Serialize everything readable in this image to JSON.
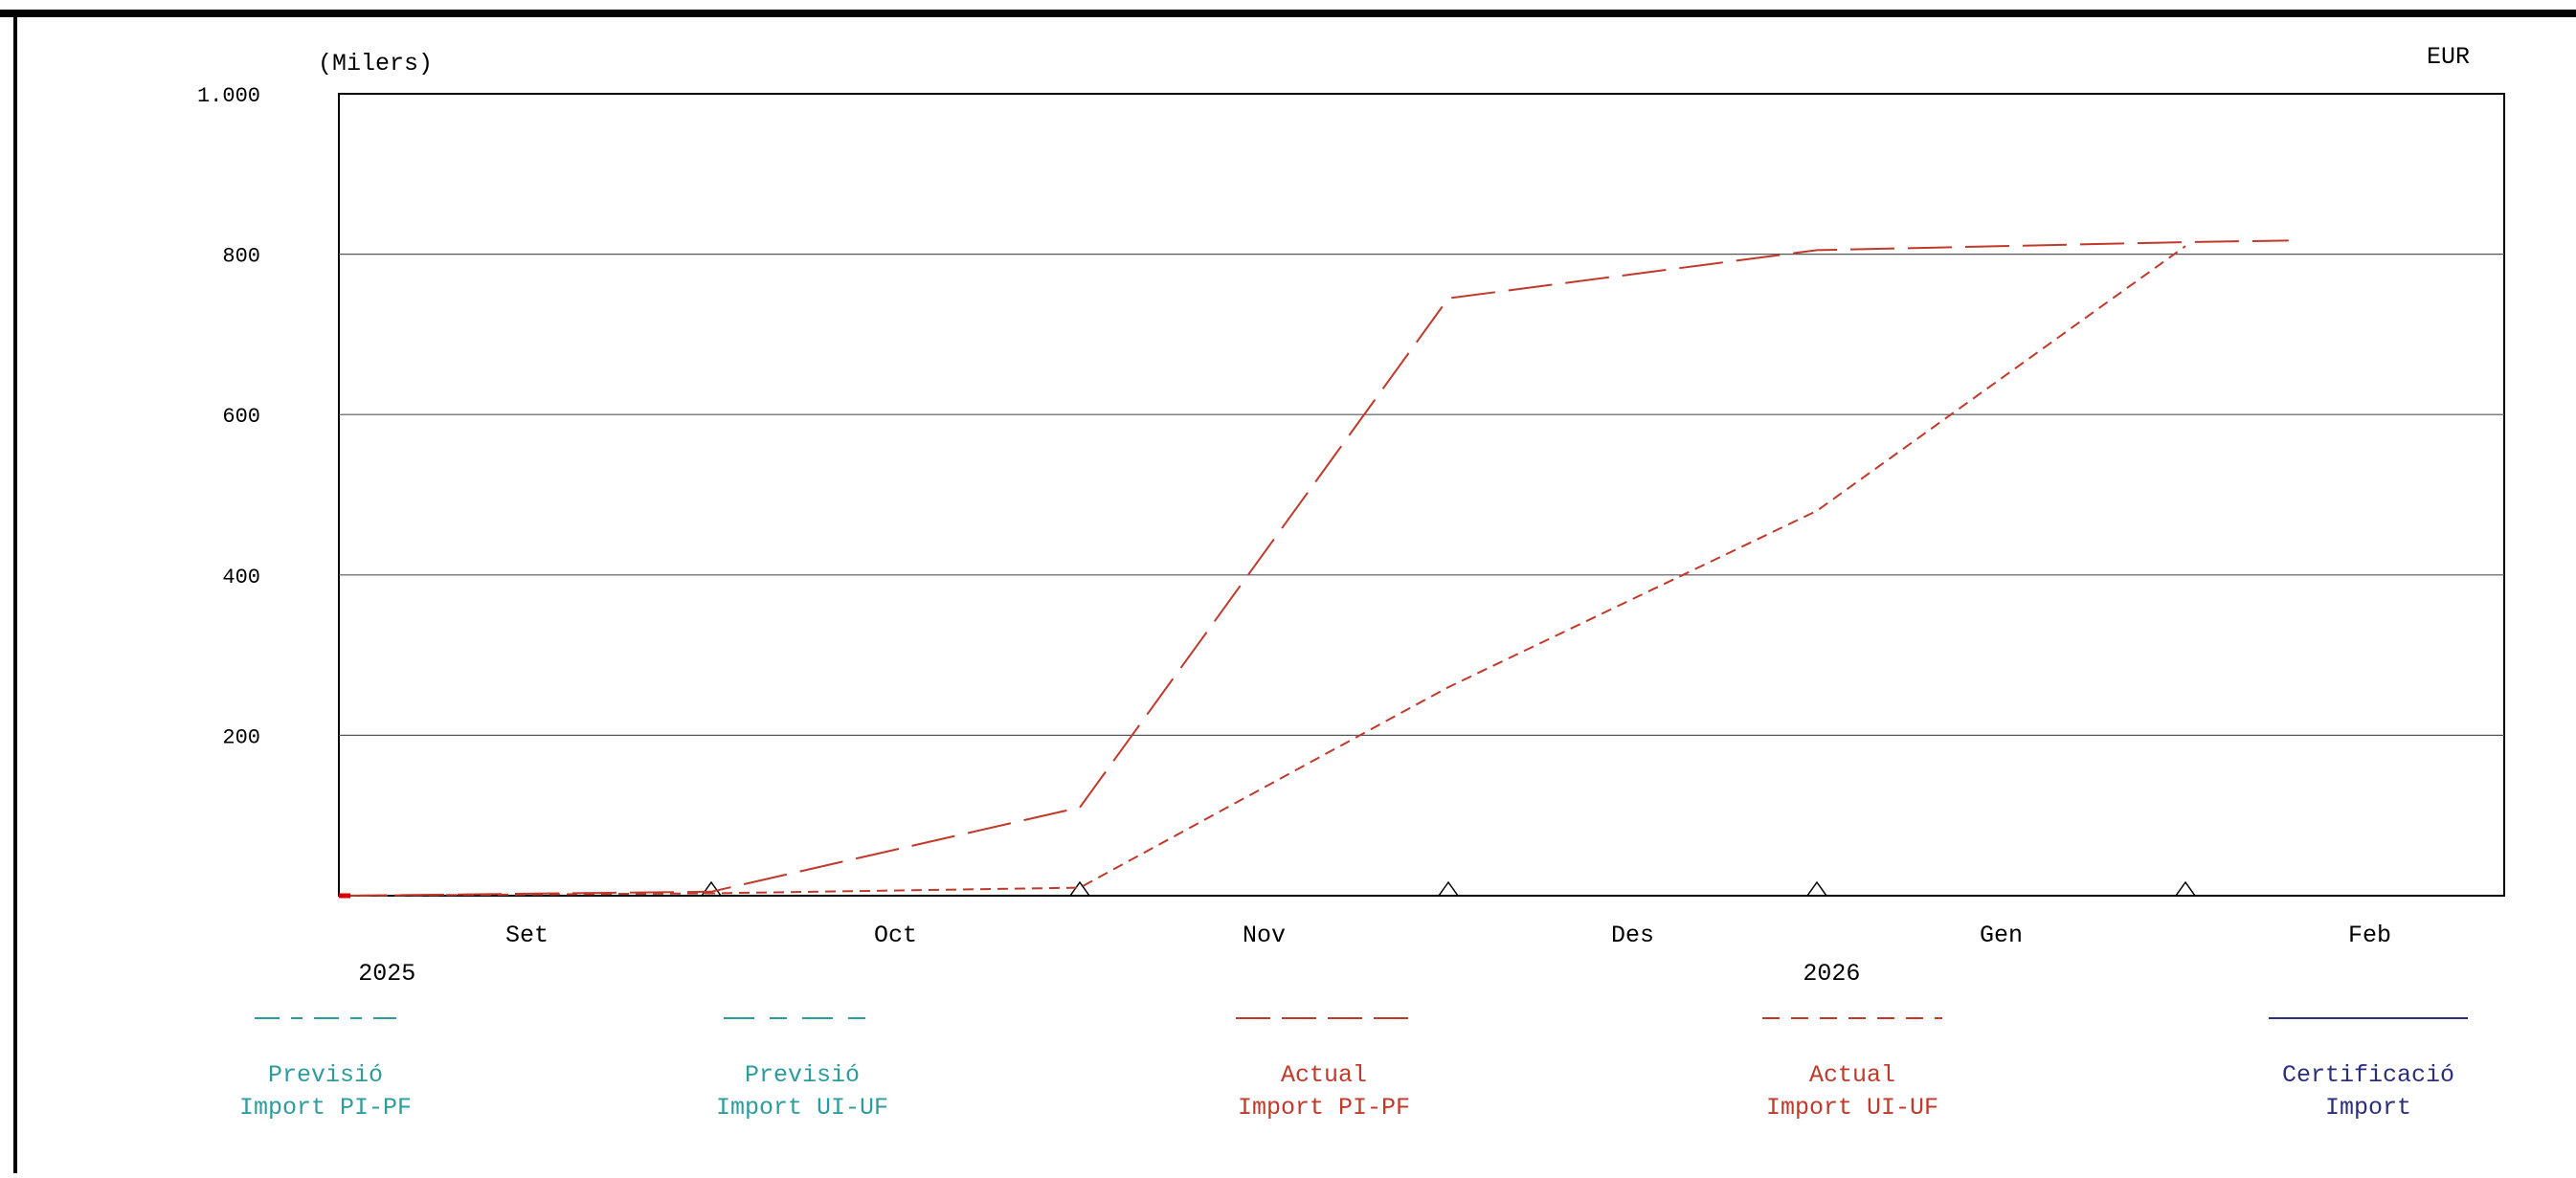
{
  "chart_data": {
    "type": "line",
    "unit_label": "(Milers)",
    "currency": "EUR",
    "y_ticks": [
      {
        "value": 1000,
        "label": "1.000"
      },
      {
        "value": 800,
        "label": "800"
      },
      {
        "value": 600,
        "label": "600"
      },
      {
        "value": 400,
        "label": "400"
      },
      {
        "value": 200,
        "label": "200"
      }
    ],
    "ylim": [
      0,
      1000
    ],
    "xlim": [
      0,
      6
    ],
    "x_month_labels": [
      {
        "x": 0.5,
        "label": "Set"
      },
      {
        "x": 1.5,
        "label": "Oct"
      },
      {
        "x": 2.5,
        "label": "Nov"
      },
      {
        "x": 3.5,
        "label": "Des"
      },
      {
        "x": 4.5,
        "label": "Gen"
      },
      {
        "x": 5.5,
        "label": "Feb"
      }
    ],
    "x_year_labels": [
      {
        "x": 0.12,
        "label": "2025"
      },
      {
        "x": 4.04,
        "label": "2026"
      }
    ],
    "x_markers": [
      1,
      2,
      3,
      4,
      5
    ],
    "grid": true,
    "series": [
      {
        "name_line1": "Previsió",
        "name_line2": "Import PI-PF",
        "color": "#2e9c9c",
        "dash": "dashdot",
        "points": []
      },
      {
        "name_line1": "Previsió",
        "name_line2": "Import UI-UF",
        "color": "#2e9c9c",
        "dash": "dashdot2",
        "points": []
      },
      {
        "name_line1": "Actual",
        "name_line2": "Import PI-PF",
        "color": "#c0392b",
        "dash": "longdash",
        "points": [
          {
            "x": 0.0,
            "y": 0
          },
          {
            "x": 1.0,
            "y": 5
          },
          {
            "x": 2.0,
            "y": 110
          },
          {
            "x": 3.0,
            "y": 745
          },
          {
            "x": 4.0,
            "y": 805
          },
          {
            "x": 5.0,
            "y": 815
          },
          {
            "x": 5.28,
            "y": 817
          }
        ]
      },
      {
        "name_line1": "Actual",
        "name_line2": "Import UI-UF",
        "color": "#c0392b",
        "dash": "shortdash",
        "points": [
          {
            "x": 0.0,
            "y": 0
          },
          {
            "x": 1.0,
            "y": 3
          },
          {
            "x": 2.0,
            "y": 10
          },
          {
            "x": 3.0,
            "y": 260
          },
          {
            "x": 4.0,
            "y": 480
          },
          {
            "x": 5.0,
            "y": 810
          }
        ]
      },
      {
        "name_line1": "Certificació",
        "name_line2": "Import",
        "color": "#2b2f7a",
        "dash": "solid",
        "points": []
      }
    ]
  }
}
